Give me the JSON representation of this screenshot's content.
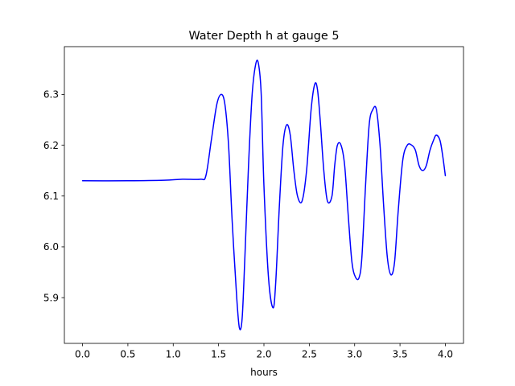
{
  "chart_data": {
    "type": "line",
    "title": "Water Depth h at gauge 5",
    "xlabel": "hours",
    "ylabel": "",
    "xlim": [
      -0.2,
      4.2
    ],
    "ylim": [
      5.81,
      6.394
    ],
    "xticks": [
      0.0,
      0.5,
      1.0,
      1.5,
      2.0,
      2.5,
      3.0,
      3.5,
      4.0
    ],
    "xtick_labels": [
      "0.0",
      "0.5",
      "1.0",
      "1.5",
      "2.0",
      "2.5",
      "3.0",
      "3.5",
      "4.0"
    ],
    "yticks": [
      5.9,
      6.0,
      6.1,
      6.2,
      6.3
    ],
    "ytick_labels": [
      "5.9",
      "6.0",
      "6.1",
      "6.2",
      "6.3"
    ],
    "grid": false,
    "legend": "none",
    "series": [
      {
        "color": "#0000ff",
        "x": [
          0.0,
          0.5,
          0.9,
          1.1,
          1.3,
          1.36,
          1.42,
          1.48,
          1.53,
          1.57,
          1.61,
          1.65,
          1.7,
          1.73,
          1.76,
          1.79,
          1.83,
          1.87,
          1.91,
          1.94,
          1.97,
          2.0,
          2.05,
          2.1,
          2.13,
          2.17,
          2.21,
          2.25,
          2.29,
          2.33,
          2.37,
          2.42,
          2.47,
          2.52,
          2.56,
          2.59,
          2.62,
          2.66,
          2.7,
          2.75,
          2.78,
          2.81,
          2.85,
          2.89,
          2.93,
          2.97,
          3.01,
          3.05,
          3.08,
          3.12,
          3.16,
          3.2,
          3.24,
          3.28,
          3.32,
          3.36,
          3.4,
          3.44,
          3.48,
          3.53,
          3.58,
          3.63,
          3.67,
          3.71,
          3.75,
          3.79,
          3.83,
          3.87,
          3.9,
          3.94,
          3.97,
          4.0
        ],
        "y": [
          6.13,
          6.13,
          6.131,
          6.133,
          6.133,
          6.14,
          6.21,
          6.28,
          6.3,
          6.28,
          6.2,
          6.05,
          5.9,
          5.84,
          5.86,
          5.98,
          6.16,
          6.3,
          6.36,
          6.36,
          6.3,
          6.12,
          5.94,
          5.88,
          5.93,
          6.08,
          6.2,
          6.24,
          6.22,
          6.15,
          6.1,
          6.09,
          6.15,
          6.27,
          6.32,
          6.31,
          6.25,
          6.15,
          6.09,
          6.1,
          6.16,
          6.2,
          6.2,
          6.16,
          6.06,
          5.97,
          5.94,
          5.94,
          5.98,
          6.12,
          6.24,
          6.27,
          6.27,
          6.2,
          6.08,
          5.98,
          5.945,
          5.97,
          6.07,
          6.17,
          6.2,
          6.2,
          6.19,
          6.16,
          6.15,
          6.16,
          6.19,
          6.21,
          6.22,
          6.21,
          6.18,
          6.14
        ]
      }
    ]
  }
}
